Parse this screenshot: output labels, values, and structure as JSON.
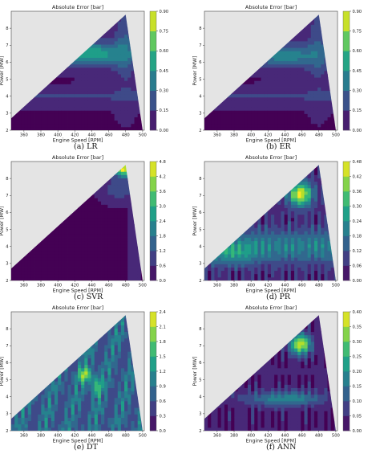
{
  "figure": {
    "caption_font": "serif"
  },
  "panels": [
    {
      "caption": "(a) LR",
      "title": "Absolute Error [bar]",
      "cbar_ticks": [
        "0.00",
        "0.15",
        "0.30",
        "0.45",
        "0.60",
        "0.75",
        "0.90"
      ]
    },
    {
      "caption": "(b) ER",
      "title": "Absolute Error [bar]",
      "cbar_ticks": [
        "0.00",
        "0.15",
        "0.30",
        "0.45",
        "0.60",
        "0.75",
        "0.90"
      ]
    },
    {
      "caption": "(c) SVR",
      "title": "Absolute Error [bar]",
      "cbar_ticks": [
        "0.0",
        "0.6",
        "1.2",
        "1.8",
        "2.4",
        "3.0",
        "3.6",
        "4.2",
        "4.8"
      ]
    },
    {
      "caption": "(d) PR",
      "title": "Absolute Error [bar]",
      "cbar_ticks": [
        "0.00",
        "0.06",
        "0.12",
        "0.18",
        "0.24",
        "0.30",
        "0.36",
        "0.42",
        "0.48"
      ]
    },
    {
      "caption": "(e) DT",
      "title": "Absolute Error [bar]",
      "cbar_ticks": [
        "0.0",
        "0.3",
        "0.6",
        "0.9",
        "1.2",
        "1.5",
        "1.8",
        "2.1",
        "2.4"
      ]
    },
    {
      "caption": "(f) ANN",
      "title": "Absolute Error [bar]",
      "cbar_ticks": [
        "0.00",
        "0.05",
        "0.10",
        "0.15",
        "0.20",
        "0.25",
        "0.30",
        "0.35",
        "0.40"
      ]
    }
  ],
  "chart_data": [
    {
      "type": "heatmap",
      "name": "LR",
      "title": "Absolute Error [bar]",
      "xlabel": "Engine Speed [RPM]",
      "ylabel": "Power [MW]",
      "xlim": [
        345,
        502
      ],
      "ylim": [
        2,
        9
      ],
      "xticks": [
        "360",
        "380",
        "400",
        "420",
        "440",
        "460",
        "480",
        "500"
      ],
      "yticks": [
        "2",
        "3",
        "4",
        "5",
        "6",
        "7",
        "8"
      ],
      "colorbar": {
        "min": 0.0,
        "max": 0.9,
        "ticks": [
          "0.00",
          "0.15",
          "0.30",
          "0.45",
          "0.60",
          "0.75",
          "0.90"
        ]
      },
      "colormap": "viridis",
      "domain": "triangle (345,2.7)-(480,8.8)-(500,2)"
    },
    {
      "type": "heatmap",
      "name": "ER",
      "title": "Absolute Error [bar]",
      "xlabel": "Engine Speed [RPM]",
      "ylabel": "Power [MW]",
      "xlim": [
        345,
        502
      ],
      "ylim": [
        2,
        9
      ],
      "xticks": [
        "360",
        "380",
        "400",
        "420",
        "440",
        "460",
        "480",
        "500"
      ],
      "yticks": [
        "2",
        "3",
        "4",
        "5",
        "6",
        "7",
        "8"
      ],
      "colorbar": {
        "min": 0.0,
        "max": 0.9,
        "ticks": [
          "0.00",
          "0.15",
          "0.30",
          "0.45",
          "0.60",
          "0.75",
          "0.90"
        ]
      },
      "colormap": "viridis",
      "domain": "triangle (345,2.7)-(480,8.8)-(500,2)"
    },
    {
      "type": "heatmap",
      "name": "SVR",
      "title": "Absolute Error [bar]",
      "xlabel": "Engine Speed [RPM]",
      "ylabel": "Power [MW]",
      "xlim": [
        345,
        502
      ],
      "ylim": [
        2,
        9
      ],
      "xticks": [
        "360",
        "380",
        "400",
        "420",
        "440",
        "460",
        "480",
        "500"
      ],
      "yticks": [
        "2",
        "3",
        "4",
        "5",
        "6",
        "7",
        "8"
      ],
      "colorbar": {
        "min": 0.0,
        "max": 4.8,
        "ticks": [
          "0.0",
          "0.6",
          "1.2",
          "1.8",
          "2.4",
          "3.0",
          "3.6",
          "4.2",
          "4.8"
        ]
      },
      "colormap": "viridis",
      "domain": "triangle (345,2.7)-(480,8.8)-(500,2)"
    },
    {
      "type": "heatmap",
      "name": "PR",
      "title": "Absolute Error [bar]",
      "xlabel": "Engine Speed [RPM]",
      "ylabel": "Power [MW]",
      "xlim": [
        345,
        502
      ],
      "ylim": [
        2,
        9
      ],
      "xticks": [
        "360",
        "380",
        "400",
        "420",
        "440",
        "460",
        "480",
        "500"
      ],
      "yticks": [
        "2",
        "3",
        "4",
        "5",
        "6",
        "7",
        "8"
      ],
      "colorbar": {
        "min": 0.0,
        "max": 0.48,
        "ticks": [
          "0.00",
          "0.06",
          "0.12",
          "0.18",
          "0.24",
          "0.30",
          "0.36",
          "0.42",
          "0.48"
        ]
      },
      "colormap": "viridis",
      "domain": "triangle (345,2.7)-(480,8.8)-(500,2)"
    },
    {
      "type": "heatmap",
      "name": "DT",
      "title": "Absolute Error [bar]",
      "xlabel": "Engine Speed [RPM]",
      "ylabel": "Power [MW]",
      "xlim": [
        345,
        502
      ],
      "ylim": [
        2,
        9
      ],
      "xticks": [
        "360",
        "380",
        "400",
        "420",
        "440",
        "460",
        "480",
        "500"
      ],
      "yticks": [
        "2",
        "3",
        "4",
        "5",
        "6",
        "7",
        "8"
      ],
      "colorbar": {
        "min": 0.0,
        "max": 2.4,
        "ticks": [
          "0.0",
          "0.3",
          "0.6",
          "0.9",
          "1.2",
          "1.5",
          "1.8",
          "2.1",
          "2.4"
        ]
      },
      "colormap": "viridis",
      "domain": "triangle (345,2.7)-(480,8.8)-(500,2)"
    },
    {
      "type": "heatmap",
      "name": "ANN",
      "title": "Absolute Error [bar]",
      "xlabel": "Engine Speed [RPM]",
      "ylabel": "Power [MW]",
      "xlim": [
        345,
        502
      ],
      "ylim": [
        2,
        9
      ],
      "xticks": [
        "360",
        "380",
        "400",
        "420",
        "440",
        "460",
        "480",
        "500"
      ],
      "yticks": [
        "2",
        "3",
        "4",
        "5",
        "6",
        "7",
        "8"
      ],
      "colorbar": {
        "min": 0.0,
        "max": 0.4,
        "ticks": [
          "0.00",
          "0.05",
          "0.10",
          "0.15",
          "0.20",
          "0.25",
          "0.30",
          "0.35",
          "0.40"
        ]
      },
      "colormap": "viridis",
      "domain": "triangle (345,2.7)-(480,8.8)-(500,2)"
    }
  ],
  "axes": {
    "xlabel": "Engine Speed [RPM]",
    "ylabel": "Power [MW]"
  }
}
